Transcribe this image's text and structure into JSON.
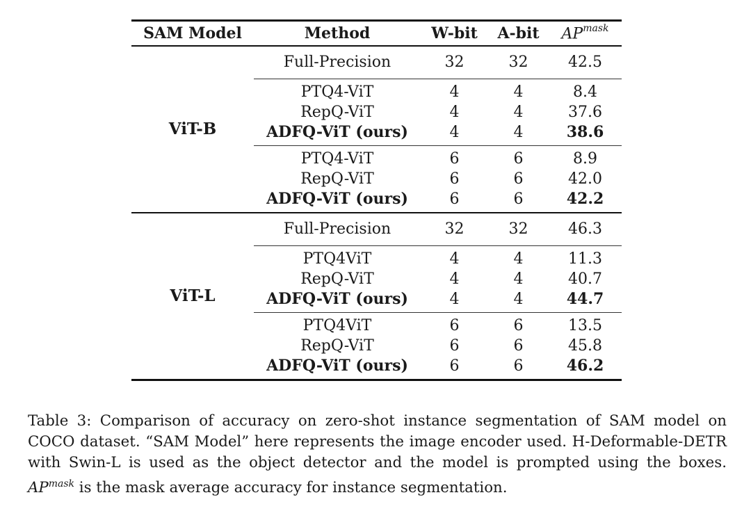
{
  "table": {
    "headers": {
      "model": "SAM Model",
      "method": "Method",
      "wbit": "W-bit",
      "abit": "A-bit",
      "ap_base": "AP",
      "ap_sup": "mask"
    },
    "blocks": [
      {
        "model": "ViT-B",
        "full_precision": {
          "method": "Full-Precision",
          "wbit": "32",
          "abit": "32",
          "ap": "42.5"
        },
        "groups": [
          [
            {
              "method": "PTQ4-ViT",
              "wbit": "4",
              "abit": "4",
              "ap": "8.4",
              "bold": false
            },
            {
              "method": "RepQ-ViT",
              "wbit": "4",
              "abit": "4",
              "ap": "37.6",
              "bold": false
            },
            {
              "method": "ADFQ-ViT (ours)",
              "wbit": "4",
              "abit": "4",
              "ap": "38.6",
              "bold": true
            }
          ],
          [
            {
              "method": "PTQ4-ViT",
              "wbit": "6",
              "abit": "6",
              "ap": "8.9",
              "bold": false
            },
            {
              "method": "RepQ-ViT",
              "wbit": "6",
              "abit": "6",
              "ap": "42.0",
              "bold": false
            },
            {
              "method": "ADFQ-ViT (ours)",
              "wbit": "6",
              "abit": "6",
              "ap": "42.2",
              "bold": true
            }
          ]
        ]
      },
      {
        "model": "ViT-L",
        "full_precision": {
          "method": "Full-Precision",
          "wbit": "32",
          "abit": "32",
          "ap": "46.3"
        },
        "groups": [
          [
            {
              "method": "PTQ4ViT",
              "wbit": "4",
              "abit": "4",
              "ap": "11.3",
              "bold": false
            },
            {
              "method": "RepQ-ViT",
              "wbit": "4",
              "abit": "4",
              "ap": "40.7",
              "bold": false
            },
            {
              "method": "ADFQ-ViT (ours)",
              "wbit": "4",
              "abit": "4",
              "ap": "44.7",
              "bold": true
            }
          ],
          [
            {
              "method": "PTQ4ViT",
              "wbit": "6",
              "abit": "6",
              "ap": "13.5",
              "bold": false
            },
            {
              "method": "RepQ-ViT",
              "wbit": "6",
              "abit": "6",
              "ap": "45.8",
              "bold": false
            },
            {
              "method": "ADFQ-ViT (ours)",
              "wbit": "6",
              "abit": "6",
              "ap": "46.2",
              "bold": true
            }
          ]
        ]
      }
    ]
  },
  "caption": {
    "part1": "Table 3: Comparison of accuracy on zero-shot instance segmentation of SAM model on COCO dataset. “SAM Model” here represents the image encoder used. H-Deformable-DETR with Swin-L is used as the object detector and the model is prompted using the boxes. ",
    "ap_base": "AP",
    "ap_sup": "mask",
    "part2": " is the mask average accuracy for instance segmentation."
  }
}
